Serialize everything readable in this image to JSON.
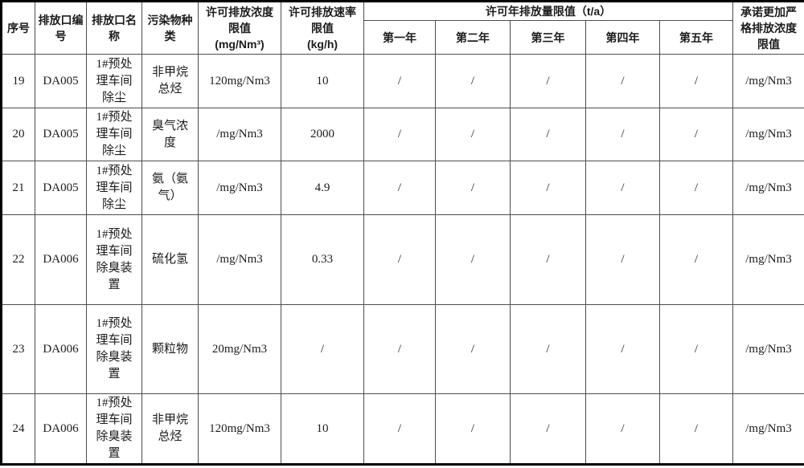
{
  "table": {
    "header": [
      {
        "key": "index",
        "label": "序号"
      },
      {
        "key": "outlet_no",
        "label": "排放口编\n号"
      },
      {
        "key": "outlet_name",
        "label": "排放口名\n称"
      },
      {
        "key": "pollutant",
        "label": "污染物种\n类"
      },
      {
        "key": "conc_limit",
        "label": "许可排放浓度\n限值\n(mg/Nm³)"
      },
      {
        "key": "rate_limit",
        "label": "许可排放速率\n限值\n(kg/h)"
      },
      {
        "key": "annual",
        "label": "许可年排放量限值（t/a）",
        "children": [
          {
            "key": "year1",
            "label": "第一年"
          },
          {
            "key": "year2",
            "label": "第二年"
          },
          {
            "key": "year3",
            "label": "第三年"
          },
          {
            "key": "year4",
            "label": "第四年"
          },
          {
            "key": "year5",
            "label": "第五年"
          }
        ]
      },
      {
        "key": "stricter",
        "label": "承诺更加严\n格排放浓度\n限值"
      }
    ],
    "rows": [
      {
        "index": "19",
        "outlet_no": "DA005",
        "outlet_name": "1#预处\n理车间\n除尘",
        "pollutant": "非甲烷\n总烃",
        "conc_limit": "120mg/Nm3",
        "rate_limit": "10",
        "year1": "/",
        "year2": "/",
        "year3": "/",
        "year4": "/",
        "year5": "/",
        "stricter": "/mg/Nm3"
      },
      {
        "index": "20",
        "outlet_no": "DA005",
        "outlet_name": "1#预处\n理车间\n除尘",
        "pollutant": "臭气浓\n度",
        "conc_limit": "/mg/Nm3",
        "rate_limit": "2000",
        "year1": "/",
        "year2": "/",
        "year3": "/",
        "year4": "/",
        "year5": "/",
        "stricter": "/mg/Nm3"
      },
      {
        "index": "21",
        "outlet_no": "DA005",
        "outlet_name": "1#预处\n理车间\n除尘",
        "pollutant": "氨（氨\n气）",
        "conc_limit": "/mg/Nm3",
        "rate_limit": "4.9",
        "year1": "/",
        "year2": "/",
        "year3": "/",
        "year4": "/",
        "year5": "/",
        "stricter": "/mg/Nm3"
      },
      {
        "index": "22",
        "outlet_no": "DA006",
        "outlet_name": "1#预处\n理车间\n除臭装\n置",
        "pollutant": "硫化氢",
        "conc_limit": "/mg/Nm3",
        "rate_limit": "0.33",
        "year1": "/",
        "year2": "/",
        "year3": "/",
        "year4": "/",
        "year5": "/",
        "stricter": "/mg/Nm3"
      },
      {
        "index": "23",
        "outlet_no": "DA006",
        "outlet_name": "1#预处\n理车间\n除臭装\n置",
        "pollutant": "颗粒物",
        "conc_limit": "20mg/Nm3",
        "rate_limit": "/",
        "year1": "/",
        "year2": "/",
        "year3": "/",
        "year4": "/",
        "year5": "/",
        "stricter": "/mg/Nm3"
      },
      {
        "index": "24",
        "outlet_no": "DA006",
        "outlet_name": "1#预处\n理车间\n除臭装\n置",
        "pollutant": "非甲烷\n总烃",
        "conc_limit": "120mg/Nm3",
        "rate_limit": "10",
        "year1": "/",
        "year2": "/",
        "year3": "/",
        "year4": "/",
        "year5": "/",
        "stricter": "/mg/Nm3"
      }
    ]
  }
}
